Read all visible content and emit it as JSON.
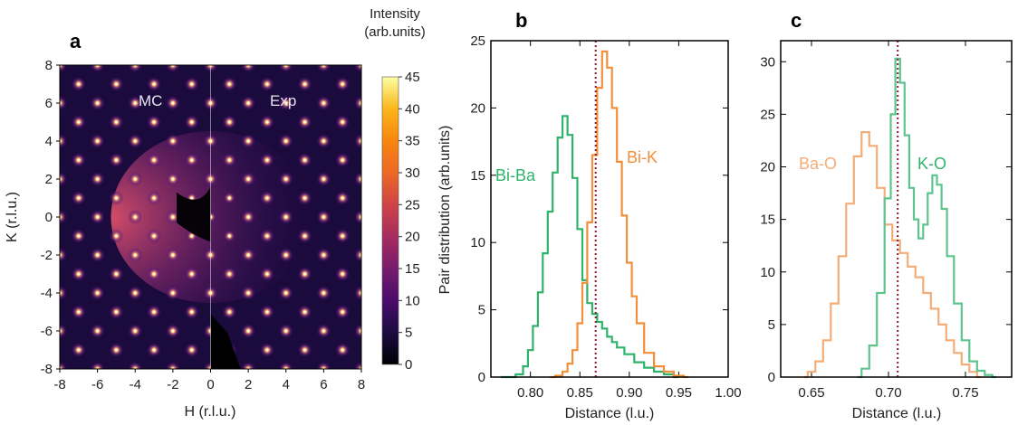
{
  "panels": {
    "a": {
      "label": "a"
    },
    "b": {
      "label": "b"
    },
    "c": {
      "label": "c"
    }
  },
  "chart_data": [
    {
      "panel": "a",
      "type": "heatmap",
      "xlabel": "H (r.l.u.)",
      "ylabel": "K (r.l.u.)",
      "xlim": [
        -8,
        8
      ],
      "ylim": [
        -8,
        8
      ],
      "xticks": [
        "-8",
        "-6",
        "-4",
        "-2",
        "0",
        "2",
        "4",
        "6",
        "8"
      ],
      "yticks": [
        "8",
        "6",
        "4",
        "2",
        "0",
        "-2",
        "-4",
        "-6",
        "-8"
      ],
      "region_labels": [
        "MC",
        "Exp"
      ],
      "colorbar": {
        "title_line1": "Intensity",
        "title_line2": "(arb.units)",
        "range": [
          0,
          45
        ],
        "ticks": [
          "45",
          "40",
          "35",
          "30",
          "25",
          "20",
          "15",
          "10",
          "5",
          "0"
        ],
        "colors": [
          "#000004",
          "#1b0c41",
          "#4a0c6b",
          "#781c6d",
          "#a52c60",
          "#cf4446",
          "#ed6925",
          "#f8850f",
          "#fbb61a",
          "#fcffa4"
        ]
      }
    },
    {
      "panel": "b",
      "type": "line",
      "xlabel": "Distance (l.u.)",
      "ylabel": "Pair distribution (arb.units)",
      "xlim": [
        0.76,
        1.0
      ],
      "ylim": [
        0,
        25
      ],
      "xticks": [
        "0.80",
        "0.85",
        "0.90",
        "0.95",
        "1.00"
      ],
      "yticks": [
        "0",
        "5",
        "10",
        "15",
        "20",
        "25"
      ],
      "vline": 0.866,
      "series": [
        {
          "name": "Bi-Ba",
          "color": "#2fb36a",
          "x": [
            0.77,
            0.78,
            0.79,
            0.795,
            0.8,
            0.805,
            0.81,
            0.815,
            0.82,
            0.825,
            0.83,
            0.835,
            0.84,
            0.845,
            0.85,
            0.855,
            0.86,
            0.865,
            0.87,
            0.875,
            0.88,
            0.885,
            0.89,
            0.9,
            0.91,
            0.92,
            0.93,
            0.94,
            0.95
          ],
          "y": [
            0,
            0,
            0.2,
            0.8,
            2.0,
            3.8,
            6.3,
            9.2,
            12.3,
            15.2,
            17.8,
            19.4,
            18.0,
            14.8,
            11.0,
            7.2,
            5.5,
            4.7,
            4.1,
            3.6,
            3.0,
            2.6,
            2.2,
            1.7,
            1.1,
            0.7,
            0.4,
            0.2,
            0
          ]
        },
        {
          "name": "Bi-K",
          "color": "#f28f3b",
          "x": [
            0.82,
            0.83,
            0.835,
            0.84,
            0.845,
            0.85,
            0.855,
            0.86,
            0.865,
            0.87,
            0.875,
            0.88,
            0.885,
            0.89,
            0.895,
            0.9,
            0.905,
            0.91,
            0.92,
            0.93,
            0.94,
            0.95,
            0.96
          ],
          "y": [
            0,
            0.1,
            0.4,
            1.0,
            2.0,
            4.0,
            7.0,
            11.5,
            16.5,
            21.5,
            24.2,
            23.0,
            20.0,
            16.0,
            12.0,
            8.5,
            6.0,
            4.0,
            1.8,
            0.8,
            0.4,
            0.1,
            0
          ]
        }
      ]
    },
    {
      "panel": "c",
      "type": "line",
      "xlabel": "Distance (l.u.)",
      "xlim": [
        0.63,
        0.78
      ],
      "ylim": [
        0,
        32
      ],
      "xticks": [
        "0.65",
        "0.70",
        "0.75"
      ],
      "yticks": [
        "0",
        "5",
        "10",
        "15",
        "20",
        "25",
        "30"
      ],
      "vline": 0.706,
      "series": [
        {
          "name": "Ba-O",
          "color": "#f2ad79",
          "x": [
            0.645,
            0.65,
            0.655,
            0.66,
            0.665,
            0.67,
            0.675,
            0.68,
            0.685,
            0.69,
            0.695,
            0.7,
            0.705,
            0.71,
            0.715,
            0.72,
            0.725,
            0.73,
            0.735,
            0.74,
            0.745,
            0.75,
            0.755,
            0.76
          ],
          "y": [
            0,
            0.5,
            1.5,
            3.5,
            7.0,
            11.5,
            16.5,
            21.0,
            23.3,
            22.0,
            18.0,
            14.5,
            13.0,
            11.8,
            10.5,
            9.5,
            8.0,
            6.5,
            5.0,
            3.5,
            2.3,
            1.2,
            0.5,
            0
          ]
        },
        {
          "name": "K-O",
          "color": "#5ec48d",
          "x": [
            0.68,
            0.685,
            0.69,
            0.695,
            0.7,
            0.703,
            0.706,
            0.709,
            0.712,
            0.715,
            0.718,
            0.721,
            0.724,
            0.727,
            0.73,
            0.733,
            0.736,
            0.74,
            0.745,
            0.75,
            0.755,
            0.76,
            0.765,
            0.77
          ],
          "y": [
            0,
            0.8,
            3.0,
            8.0,
            17.0,
            25.0,
            30.3,
            28.0,
            23.0,
            18.0,
            15.0,
            13.2,
            14.5,
            17.5,
            19.2,
            18.3,
            16.0,
            11.5,
            7.0,
            3.5,
            1.5,
            0.6,
            0.2,
            0
          ]
        }
      ]
    }
  ]
}
